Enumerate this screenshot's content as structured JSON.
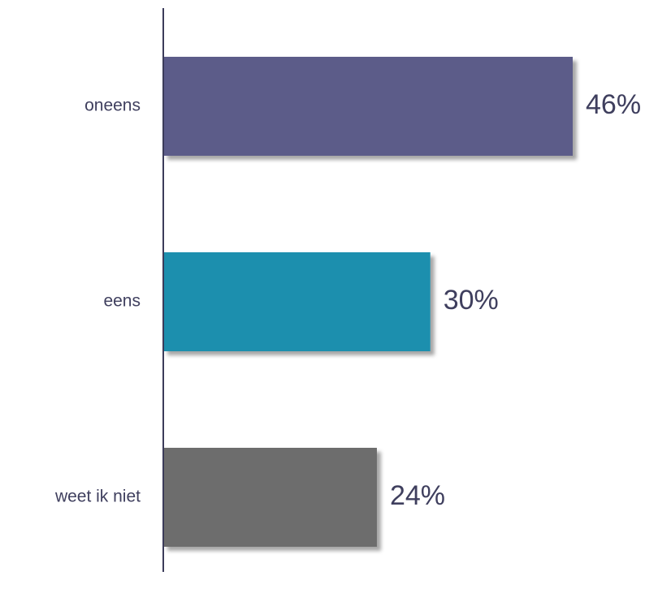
{
  "chart_data": {
    "type": "bar",
    "orientation": "horizontal",
    "categories": [
      "oneens",
      "eens",
      "weet ik niet"
    ],
    "values": [
      46,
      30,
      24
    ],
    "value_labels": [
      "46%",
      "30%",
      "24%"
    ],
    "colors": [
      "#5b5b89",
      "#1f8fae",
      "#6d6d6d"
    ],
    "xlim": [
      0,
      46
    ],
    "grid": false,
    "legend": "none",
    "axis_color": "#3c3c5a"
  }
}
